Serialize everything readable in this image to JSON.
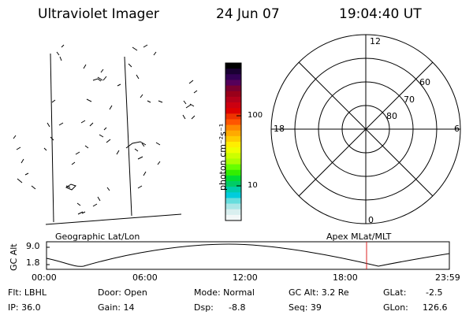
{
  "header": {
    "instrument": "Ultraviolet Imager",
    "date": "24 Jun 07",
    "time": "19:04:40 UT"
  },
  "colorbar": {
    "unit_label": "photon cm⁻²s⁻¹",
    "ticks": [
      "100",
      "10"
    ],
    "colors": [
      "#000000",
      "#1a0033",
      "#330055",
      "#55005a",
      "#7a0030",
      "#99001a",
      "#b3001a",
      "#cc0010",
      "#dd0000",
      "#ee3300",
      "#ff5500",
      "#ff8800",
      "#ffaa00",
      "#ffcc00",
      "#ffee00",
      "#eeff00",
      "#ccff00",
      "#aaff00",
      "#66ff00",
      "#33ee00",
      "#00dd33",
      "#00cc66",
      "#00ccaa",
      "#00ccdd",
      "#66dddd",
      "#aae6e6",
      "#d9efef",
      "#f2f7f7"
    ]
  },
  "polar_plot": {
    "mlt_labels": {
      "top": "12",
      "left": "18",
      "right": "6",
      "bottom": "0"
    },
    "lat_labels": [
      "60",
      "70",
      "80"
    ]
  },
  "map_labels": {
    "left": "Geographic Lat/Lon",
    "right": "Apex MLat/MLT"
  },
  "timeline": {
    "y_axis_label": "GC Alt",
    "y_ticks": [
      "9.0",
      "1.8"
    ],
    "x_ticks": [
      "00:00",
      "06:00",
      "12:00",
      "18:00",
      "23:59"
    ],
    "cursor_time": "19:04",
    "cursor_color": "#dd2222"
  },
  "status": {
    "row1": {
      "flt": "Flt: LBHL",
      "door": "Door: Open",
      "mode": "Mode: Normal",
      "gc_alt": "GC Alt: 3.2 Re",
      "glat_label": "GLat:",
      "glat_value": "-2.5"
    },
    "row2": {
      "ip": "IP: 36.0",
      "gain": "Gain: 14",
      "dsp_label": "Dsp:",
      "dsp_value": "-8.8",
      "seq": "Seq: 39",
      "glon_label": "GLon:",
      "glon_value": "126.6"
    }
  }
}
